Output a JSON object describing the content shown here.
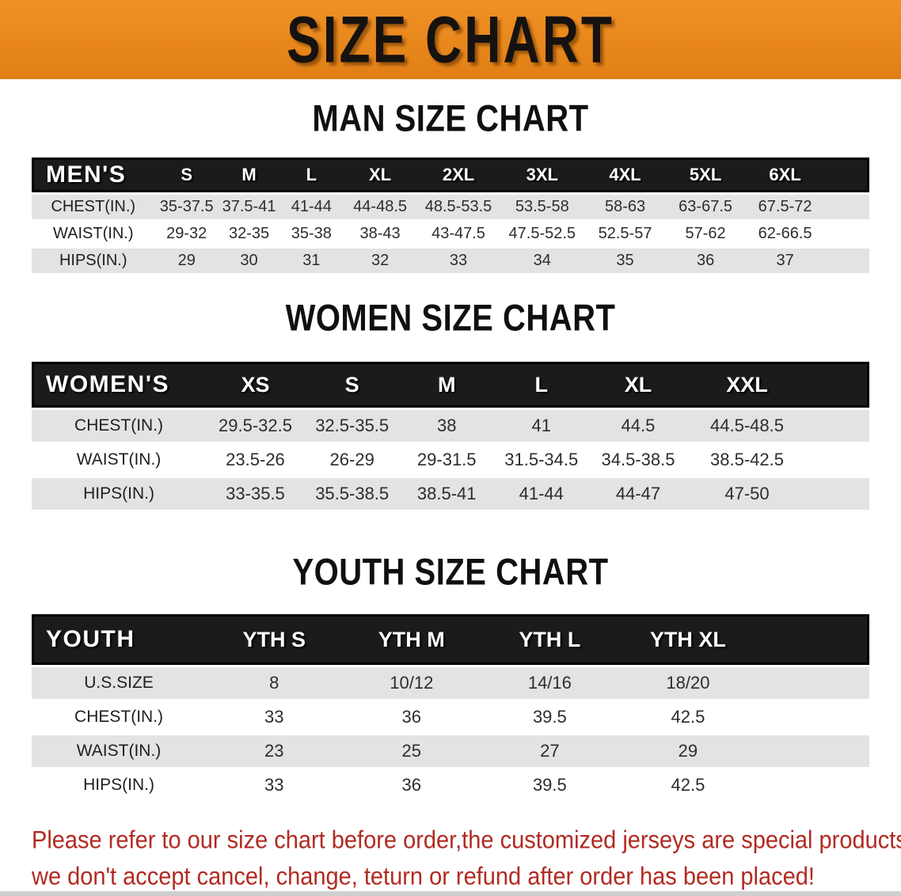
{
  "banner": {
    "title": "SIZE CHART",
    "background_color": "#E8871C",
    "text_color": "#161210"
  },
  "sections": [
    {
      "heading": "MAN SIZE CHART",
      "label": "MEN'S",
      "columns": [
        "S",
        "M",
        "L",
        "XL",
        "2XL",
        "3XL",
        "4XL",
        "5XL",
        "6XL"
      ],
      "rows": [
        {
          "label": "CHEST(IN.)",
          "values": [
            "35-37.5",
            "37.5-41",
            "41-44",
            "44-48.5",
            "48.5-53.5",
            "53.5-58",
            "58-63",
            "63-67.5",
            "67.5-72"
          ]
        },
        {
          "label": "WAIST(IN.)",
          "values": [
            "29-32",
            "32-35",
            "35-38",
            "38-43",
            "43-47.5",
            "47.5-52.5",
            "52.5-57",
            "57-62",
            "62-66.5"
          ]
        },
        {
          "label": "HIPS(IN.)",
          "values": [
            "29",
            "30",
            "31",
            "32",
            "33",
            "34",
            "35",
            "36",
            "37"
          ]
        }
      ]
    },
    {
      "heading": "WOMEN SIZE CHART",
      "label": "WOMEN'S",
      "columns": [
        "XS",
        "S",
        "M",
        "L",
        "XL",
        "XXL"
      ],
      "rows": [
        {
          "label": "CHEST(IN.)",
          "values": [
            "29.5-32.5",
            "32.5-35.5",
            "38",
            "41",
            "44.5",
            "44.5-48.5"
          ]
        },
        {
          "label": "WAIST(IN.)",
          "values": [
            "23.5-26",
            "26-29",
            "29-31.5",
            "31.5-34.5",
            "34.5-38.5",
            "38.5-42.5"
          ]
        },
        {
          "label": "HIPS(IN.)",
          "values": [
            "33-35.5",
            "35.5-38.5",
            "38.5-41",
            "41-44",
            "44-47",
            "47-50"
          ]
        }
      ]
    },
    {
      "heading": "YOUTH SIZE CHART",
      "label": "YOUTH",
      "columns": [
        "YTH S",
        "YTH M",
        "YTH L",
        "YTH XL"
      ],
      "rows": [
        {
          "label": "U.S.SIZE",
          "values": [
            "8",
            "10/12",
            "14/16",
            "18/20"
          ]
        },
        {
          "label": "CHEST(IN.)",
          "values": [
            "33",
            "36",
            "39.5",
            "42.5"
          ]
        },
        {
          "label": "WAIST(IN.)",
          "values": [
            "23",
            "25",
            "27",
            "29"
          ]
        },
        {
          "label": "HIPS(IN.)",
          "values": [
            "33",
            "36",
            "39.5",
            "42.5"
          ]
        }
      ]
    }
  ],
  "footer": {
    "line1": "Please refer to our size chart before order,the customized jerseys are special products,",
    "line2": "we don't accept cancel, change, teturn or refund after order has been placed!",
    "text_color": "#B12A21"
  },
  "table_style_colors": {
    "header_background": "#1B1B1B",
    "header_text": "#FFFFFF",
    "shaded_row_background": "#E3E3E3",
    "value_text": "#2B2D31"
  }
}
